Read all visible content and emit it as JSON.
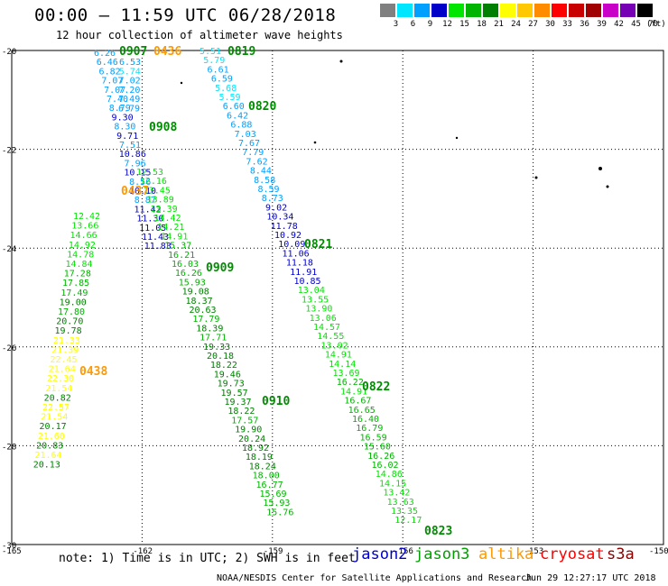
{
  "header": {
    "title": "00:00 – 11:59 UTC 06/28/2018",
    "subtitle": "12 hour collection of altimeter wave heights"
  },
  "colorbar": {
    "unit": "(ft)",
    "bins": [
      {
        "label": "3",
        "color": "#808080"
      },
      {
        "label": "6",
        "color": "#00e6ff"
      },
      {
        "label": "9",
        "color": "#00a0ff"
      },
      {
        "label": "12",
        "color": "#0000c8"
      },
      {
        "label": "15",
        "color": "#00e600"
      },
      {
        "label": "18",
        "color": "#00b400"
      },
      {
        "label": "21",
        "color": "#008000"
      },
      {
        "label": "24",
        "color": "#ffff00"
      },
      {
        "label": "27",
        "color": "#ffc800"
      },
      {
        "label": "30",
        "color": "#ff8c00"
      },
      {
        "label": "33",
        "color": "#ff0000"
      },
      {
        "label": "36",
        "color": "#c80000"
      },
      {
        "label": "39",
        "color": "#a00000"
      },
      {
        "label": "42",
        "color": "#c800c8"
      },
      {
        "label": "45",
        "color": "#7800b4"
      },
      {
        "label": "70",
        "color": "#000000"
      }
    ]
  },
  "axes": {
    "lat_labels": [
      "-20",
      "-22",
      "-24",
      "-26",
      "-28",
      "-30"
    ],
    "lon_labels": [
      "-165",
      "-162",
      "-159",
      "-156",
      "-153",
      "-150"
    ]
  },
  "notes": {
    "note_text": "note: 1) Time is in UTC; 2) SWH is in feet",
    "footer_center": "NOAA/NESDIS Center for Satellite Applications and Research",
    "footer_time": "Jun 29 12:27:17 UTC 2018"
  },
  "legend": [
    {
      "label": "jason2",
      "color": "#0000c8"
    },
    {
      "label": "jason3",
      "color": "#00a000"
    },
    {
      "label": "altika",
      "color": "#ff9900"
    },
    {
      "label": "cryosat",
      "color": "#ff0000"
    },
    {
      "label": "s3a",
      "color": "#8b0000"
    }
  ],
  "map_data": {
    "pass_times": [
      {
        "time": "0907",
        "satellite": "jason3"
      },
      {
        "time": "0436",
        "satellite": "altika"
      },
      {
        "time": "0819",
        "satellite": "jason3"
      },
      {
        "time": "0820",
        "satellite": "jason3"
      },
      {
        "time": "0908",
        "satellite": "jason3"
      },
      {
        "time": "0437",
        "satellite": "altika"
      },
      {
        "time": "0821",
        "satellite": "jason3"
      },
      {
        "time": "0909",
        "satellite": "jason3"
      },
      {
        "time": "0438",
        "satellite": "altika"
      },
      {
        "time": "0822",
        "satellite": "jason3"
      },
      {
        "time": "0910",
        "satellite": "jason3"
      },
      {
        "time": "0823",
        "satellite": "jason3"
      }
    ],
    "track_0907": [
      "6.26",
      "6.46",
      "6.82",
      "7.07",
      "7.07",
      "7.40",
      "8.79",
      "9.30",
      "8.30",
      "9.71",
      "7.51",
      "10.86",
      "7.96",
      "10.15",
      "8.56",
      "10.10",
      "8.87",
      "11.42",
      "11.30",
      "11.05",
      "11.43",
      "11.83"
    ],
    "track_0436": [
      "6.53",
      "5.74",
      "7.02",
      "7.20",
      "7.49",
      "6.79"
    ],
    "track_0437": [
      "12.53",
      "12.16",
      "13.45",
      "13.89",
      "13.39",
      "14.42",
      "14.21",
      "14.91",
      "15.37",
      "16.21",
      "16.03",
      "16.26",
      "15.93",
      "19.08",
      "18.37",
      "20.63",
      "17.79",
      "18.39",
      "17.71",
      "19.33",
      "20.18",
      "18.22",
      "19.46",
      "19.73",
      "19.57",
      "19.37",
      "18.22",
      "17.57",
      "19.90",
      "20.24",
      "18.92",
      "18.19",
      "18.24",
      "18.00",
      "16.77",
      "15.69",
      "15.93",
      "15.76"
    ],
    "track_0438": [
      "12.42",
      "13.66",
      "14.66",
      "14.92",
      "14.78",
      "14.84",
      "17.28",
      "17.85",
      "17.49",
      "19.00",
      "17.80",
      "20.70",
      "19.78",
      "21.33",
      "21.39",
      "22.45",
      "21.64",
      "22.30",
      "21.54",
      "20.82",
      "22.57",
      "21.54",
      "20.17",
      "21.60",
      "20.83",
      "21.64",
      "20.13"
    ],
    "track_0819": [
      "5.51",
      "5.79",
      "6.61",
      "6.59",
      "5.68",
      "5.59",
      "6.60",
      "6.42",
      "6.88",
      "7.03",
      "7.67",
      "7.79",
      "7.62",
      "8.44",
      "8.58",
      "8.59",
      "8.73",
      "9.02",
      "10.34",
      "11.78",
      "10.92",
      "10.09",
      "11.06",
      "11.18",
      "11.91",
      "10.85",
      "13.04",
      "13.55",
      "13.90",
      "13.06",
      "14.57",
      "14.55",
      "13.02",
      "14.91",
      "14.14",
      "13.69",
      "16.22",
      "14.91",
      "16.67",
      "16.65",
      "16.40",
      "16.79",
      "16.59",
      "15.60",
      "16.26",
      "16.02",
      "14.86",
      "14.15",
      "13.42",
      "13.63",
      "13.35",
      "12.17"
    ]
  }
}
